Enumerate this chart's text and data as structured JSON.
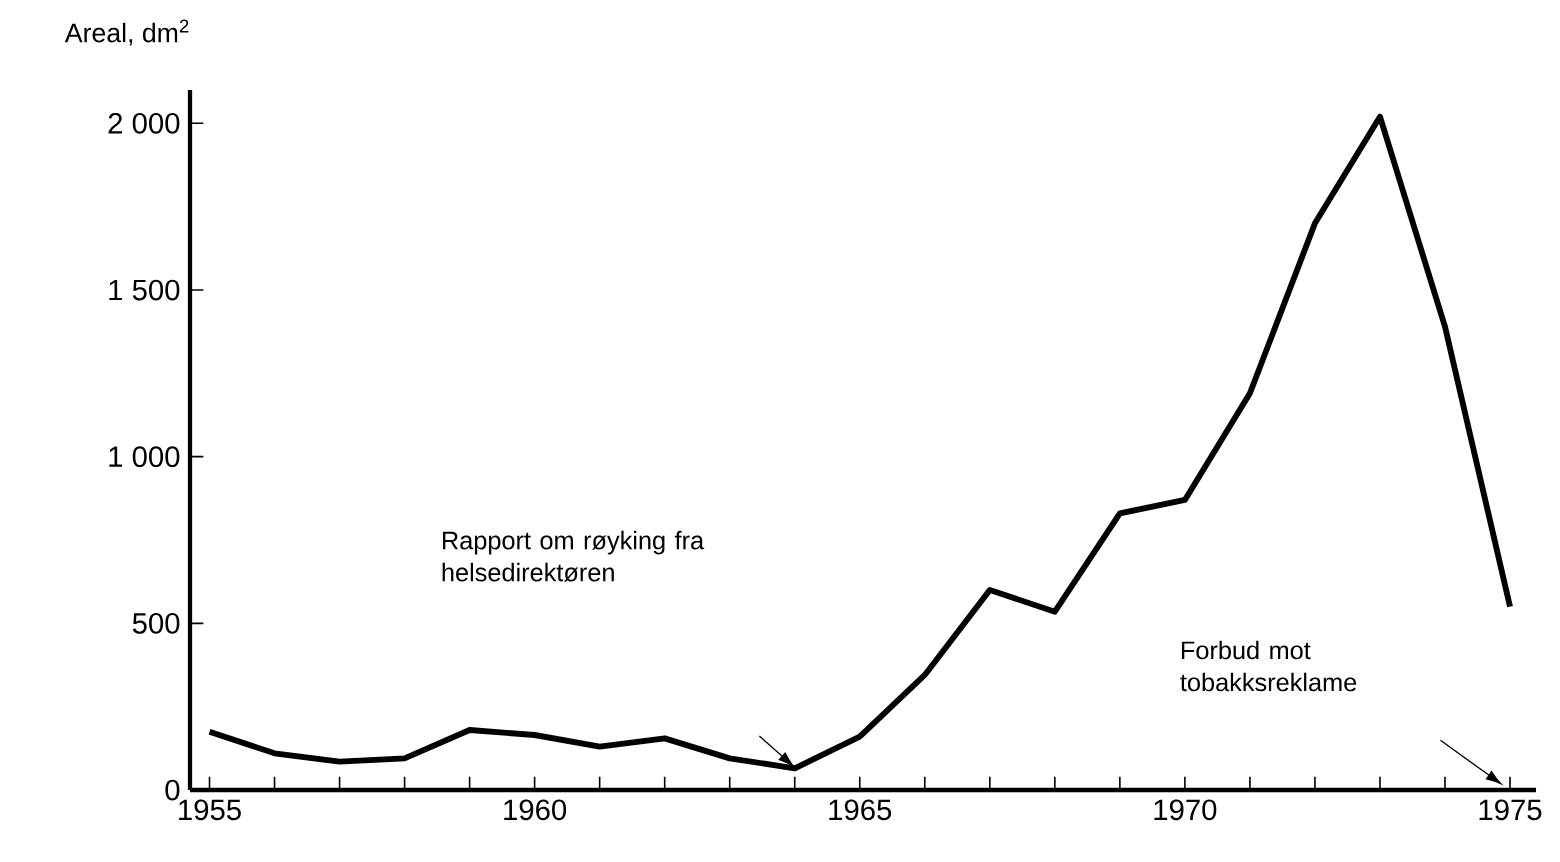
{
  "chart_data": {
    "type": "line",
    "ylabel": "Areal, dm$^{2}$",
    "x": [
      1955,
      1956,
      1957,
      1958,
      1959,
      1960,
      1961,
      1962,
      1963,
      1964,
      1965,
      1966,
      1967,
      1968,
      1969,
      1970,
      1971,
      1972,
      1973,
      1974,
      1975
    ],
    "values": [
      175,
      110,
      85,
      95,
      180,
      165,
      130,
      155,
      95,
      65,
      160,
      345,
      600,
      535,
      830,
      870,
      1190,
      1700,
      2020,
      1390,
      550
    ],
    "color": "#000000",
    "marker": "none",
    "line_style": "solid",
    "grid": false,
    "xlim": [
      1954.7,
      1975.4
    ],
    "ylim": [
      0,
      2100
    ],
    "xticks": [
      1955,
      {
        "value": 1956,
        "label": null
      },
      {
        "value": 1957,
        "label": null
      },
      {
        "value": 1958,
        "label": null
      },
      {
        "value": 1959,
        "label": null
      },
      1960,
      {
        "value": 1961,
        "label": null
      },
      {
        "value": 1962,
        "label": null
      },
      {
        "value": 1963,
        "label": null
      },
      {
        "value": 1964,
        "label": null
      },
      1965,
      {
        "value": 1966,
        "label": null
      },
      {
        "value": 1967,
        "label": null
      },
      {
        "value": 1968,
        "label": null
      },
      {
        "value": 1969,
        "label": null
      },
      1970,
      {
        "value": 1971,
        "label": null
      },
      {
        "value": 1972,
        "label": null
      },
      {
        "value": 1973,
        "label": null
      },
      {
        "value": 1974,
        "label": null
      },
      1975
    ],
    "yticks": [
      0,
      500,
      {
        "value": 1000,
        "label": "1 000"
      },
      {
        "value": 1500,
        "label": "1 500"
      },
      {
        "value": 2000,
        "label": "2 000"
      }
    ],
    "annotations": [
      "Rapport om røyking fra helsedirektøren",
      "Forbud mot tobakksreklame"
    ]
  }
}
